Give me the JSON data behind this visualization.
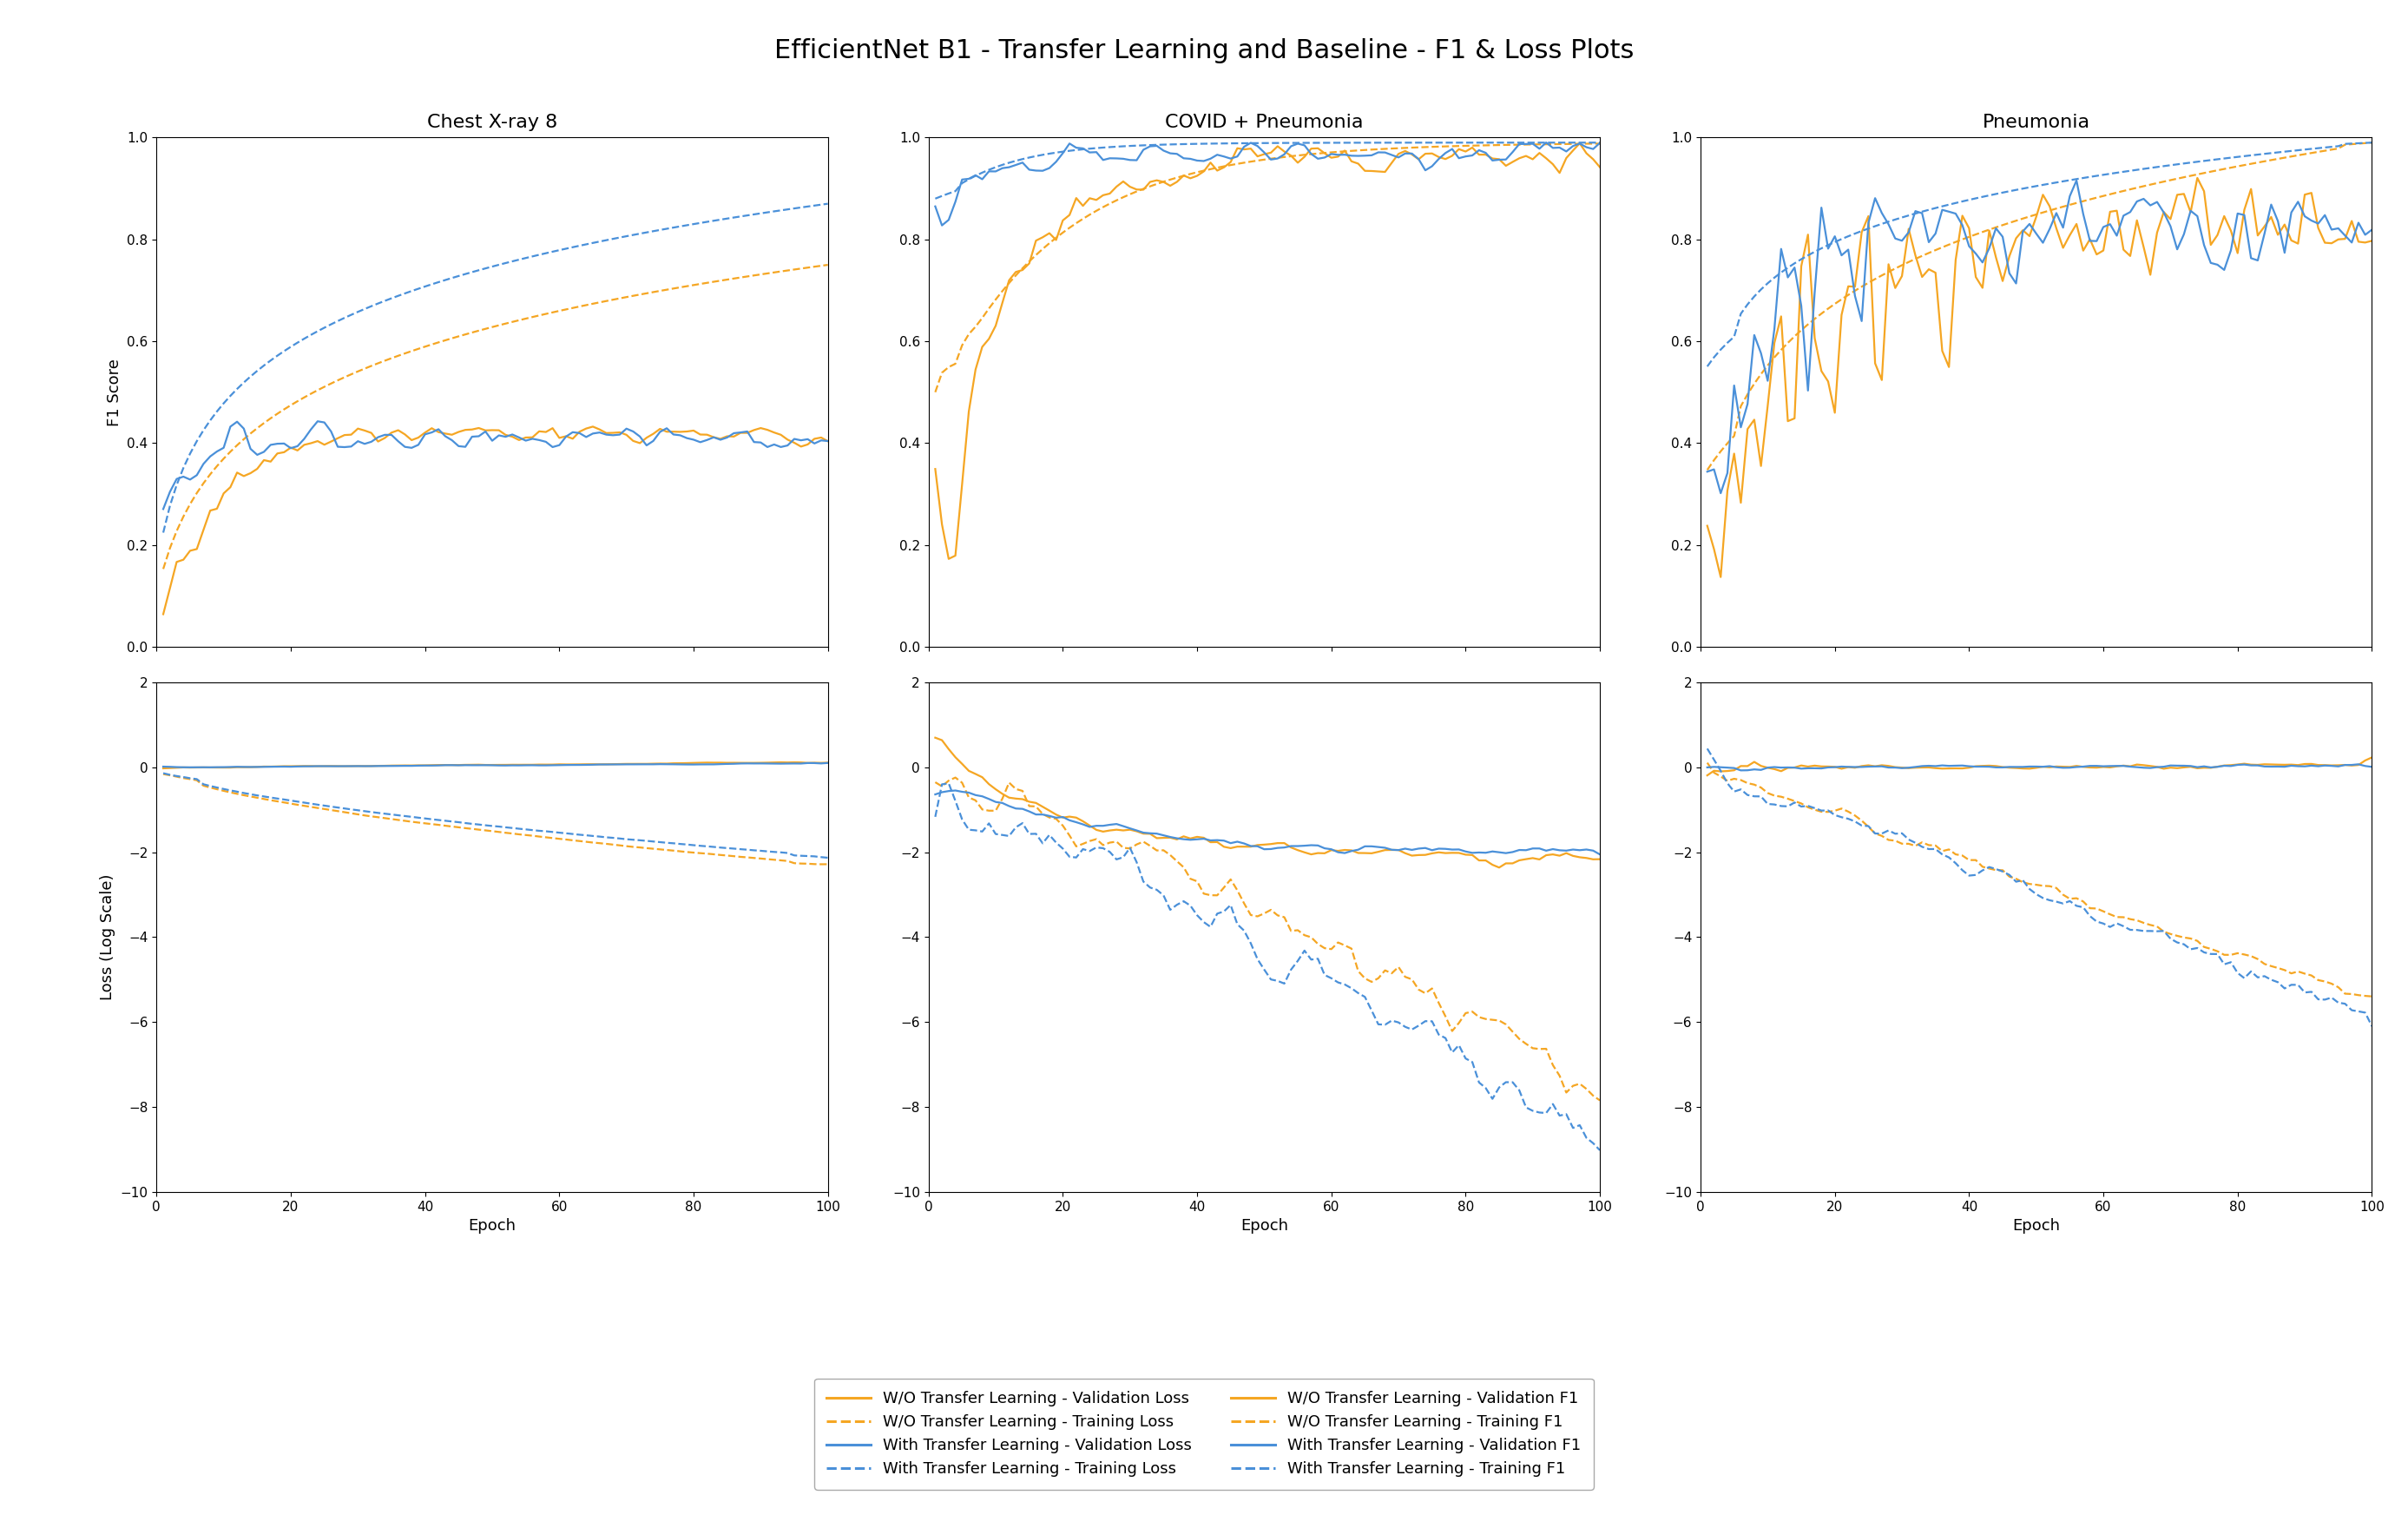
{
  "title": "EfficientNet B1 - Transfer Learning and Baseline - F1 & Loss Plots",
  "col_titles": [
    "Chest X-ray 8",
    "COVID + Pneumonia",
    "Pneumonia"
  ],
  "xlabel": "Epoch",
  "ylabel_f1": "F1 Score",
  "ylabel_loss": "Loss (Log Scale)",
  "f1_ylim": [
    0.0,
    1.0
  ],
  "loss_ylim": [
    -10,
    2
  ],
  "x_max": 100,
  "orange_color": "#F5A623",
  "blue_color": "#4A90D9",
  "legend_items": [
    {
      "label": "W/O Transfer Learning - Validation Loss",
      "color": "#F5A623",
      "ls": "solid"
    },
    {
      "label": "W/O Transfer Learning - Training Loss",
      "color": "#F5A623",
      "ls": "dashed"
    },
    {
      "label": "With Transfer Learning - Validation Loss",
      "color": "#4A90D9",
      "ls": "solid"
    },
    {
      "label": "With Transfer Learning - Training Loss",
      "color": "#4A90D9",
      "ls": "dashed"
    },
    {
      "label": "W/O Transfer Learning - Validation F1",
      "color": "#F5A623",
      "ls": "solid"
    },
    {
      "label": "W/O Transfer Learning - Training F1",
      "color": "#F5A623",
      "ls": "dashed"
    },
    {
      "label": "With Transfer Learning - Validation F1",
      "color": "#4A90D9",
      "ls": "solid"
    },
    {
      "label": "With Transfer Learning - Training F1",
      "color": "#4A90D9",
      "ls": "dashed"
    }
  ]
}
